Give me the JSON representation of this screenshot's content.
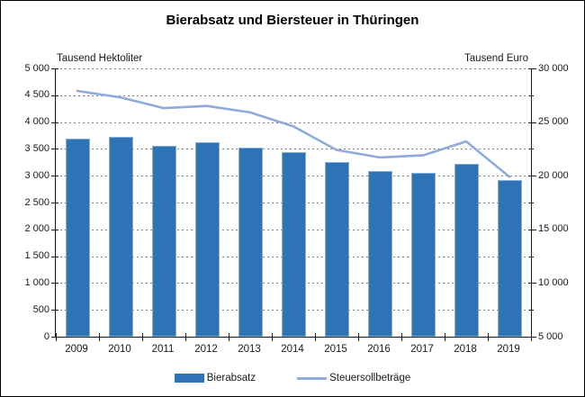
{
  "chart_data": {
    "type": "bar+line",
    "title": "Bierabsatz und Biersteuer in Thüringen",
    "categories": [
      "2009",
      "2010",
      "2011",
      "2012",
      "2013",
      "2014",
      "2015",
      "2016",
      "2017",
      "2018",
      "2019"
    ],
    "series": [
      {
        "name": "Bierabsatz",
        "type": "bar",
        "axis": "left",
        "color": "#2E74B5",
        "values": [
          3700,
          3720,
          3550,
          3630,
          3530,
          3440,
          3260,
          3080,
          3060,
          3220,
          2920
        ]
      },
      {
        "name": "Steuersollbeträge",
        "type": "line",
        "axis": "right",
        "color": "#8FAADC",
        "values": [
          27900,
          27300,
          26300,
          26500,
          25900,
          24600,
          22400,
          21700,
          21900,
          23200,
          19900
        ]
      }
    ],
    "left_axis": {
      "label": "Tausend Hektoliter",
      "min": 0,
      "max": 5000,
      "step": 500,
      "tick_labels": [
        "0",
        "500",
        "1 000",
        "1 500",
        "2 000",
        "2 500",
        "3 000",
        "3 500",
        "4 000",
        "4 500",
        "5 000"
      ]
    },
    "right_axis": {
      "label": "Tausend Euro",
      "min": 5000,
      "max": 30000,
      "step": 5000,
      "tick_labels": [
        "5 000",
        "10 000",
        "15 000",
        "20 000",
        "25 000",
        "30 000"
      ]
    },
    "grid": {
      "on": true,
      "color": "#7F7F7F",
      "style": "dashed"
    },
    "legend_position": "bottom",
    "axis_color": "#1a1a1a"
  }
}
